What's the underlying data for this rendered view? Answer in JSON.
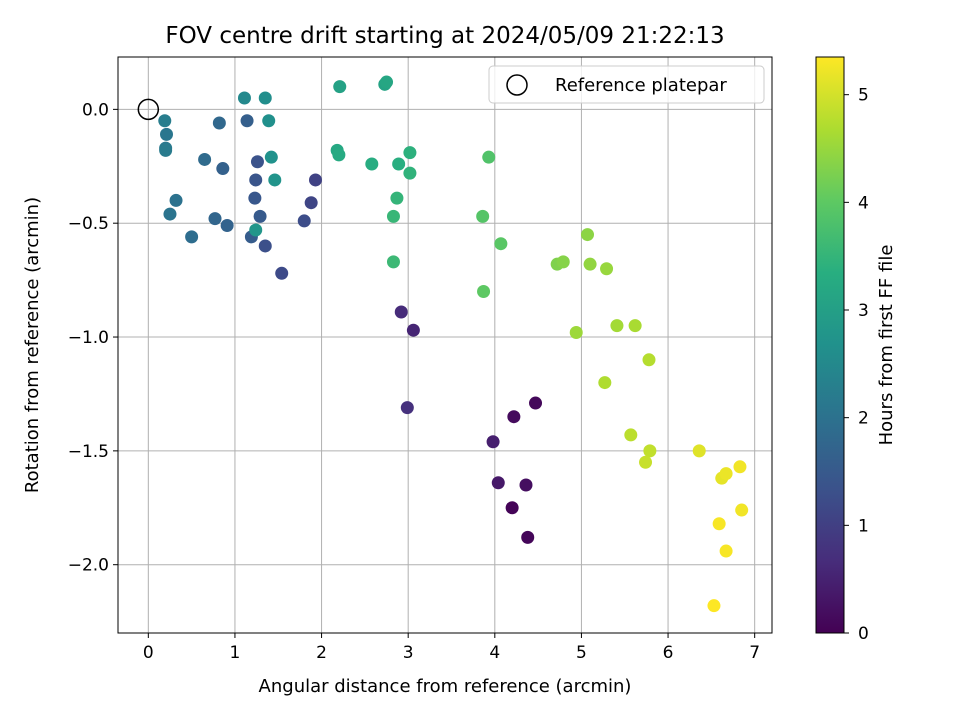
{
  "chart_data": {
    "type": "scatter",
    "title": "FOV centre drift starting at 2024/05/09 21:22:13",
    "xlabel": "Angular distance from reference (arcmin)",
    "ylabel": "Rotation from reference (arcmin)",
    "xlim": [
      -0.35,
      7.2
    ],
    "ylim": [
      -2.3,
      0.23
    ],
    "xticks": [
      0,
      1,
      2,
      3,
      4,
      5,
      6,
      7
    ],
    "xtick_labels": [
      "0",
      "1",
      "2",
      "3",
      "4",
      "5",
      "6",
      "7"
    ],
    "yticks": [
      0.0,
      -0.5,
      -1.0,
      -1.5,
      -2.0
    ],
    "ytick_labels": [
      "0.0",
      "−0.5",
      "−1.0",
      "−1.5",
      "−2.0"
    ],
    "grid": true,
    "legend": {
      "label": "Reference platepar",
      "placement": "top-right"
    },
    "reference_point": {
      "x": 0.0,
      "y": 0.0
    },
    "colorbar": {
      "label": "Hours from first FF file",
      "colormap": "viridis",
      "range": [
        0,
        5.35
      ],
      "ticks": [
        0,
        1,
        2,
        3,
        4,
        5
      ],
      "tick_labels": [
        "0",
        "1",
        "2",
        "3",
        "4",
        "5"
      ]
    },
    "points": [
      {
        "x": 4.2,
        "y": -1.75,
        "c": 0.05
      },
      {
        "x": 4.38,
        "y": -1.88,
        "c": 0.08
      },
      {
        "x": 4.47,
        "y": -1.29,
        "c": 0.1
      },
      {
        "x": 4.22,
        "y": -1.35,
        "c": 0.15
      },
      {
        "x": 4.36,
        "y": -1.65,
        "c": 0.2
      },
      {
        "x": 4.04,
        "y": -1.64,
        "c": 0.35
      },
      {
        "x": 3.98,
        "y": -1.46,
        "c": 0.45
      },
      {
        "x": 3.06,
        "y": -0.97,
        "c": 0.55
      },
      {
        "x": 2.92,
        "y": -0.89,
        "c": 0.65
      },
      {
        "x": 2.99,
        "y": -1.31,
        "c": 0.75
      },
      {
        "x": 1.93,
        "y": -0.31,
        "c": 1.05
      },
      {
        "x": 1.88,
        "y": -0.41,
        "c": 1.1
      },
      {
        "x": 1.54,
        "y": -0.72,
        "c": 1.2
      },
      {
        "x": 1.8,
        "y": -0.49,
        "c": 1.25
      },
      {
        "x": 1.35,
        "y": -0.6,
        "c": 1.3
      },
      {
        "x": 1.26,
        "y": -0.23,
        "c": 1.35
      },
      {
        "x": 1.24,
        "y": -0.31,
        "c": 1.4
      },
      {
        "x": 1.23,
        "y": -0.39,
        "c": 1.45
      },
      {
        "x": 1.29,
        "y": -0.47,
        "c": 1.5
      },
      {
        "x": 1.19,
        "y": -0.56,
        "c": 1.55
      },
      {
        "x": 1.14,
        "y": -0.05,
        "c": 1.6
      },
      {
        "x": 0.86,
        "y": -0.26,
        "c": 1.65
      },
      {
        "x": 0.91,
        "y": -0.51,
        "c": 1.7
      },
      {
        "x": 0.77,
        "y": -0.48,
        "c": 1.75
      },
      {
        "x": 0.82,
        "y": -0.06,
        "c": 1.8
      },
      {
        "x": 0.65,
        "y": -0.22,
        "c": 1.85
      },
      {
        "x": 0.5,
        "y": -0.56,
        "c": 1.9
      },
      {
        "x": 0.32,
        "y": -0.4,
        "c": 2.0
      },
      {
        "x": 0.25,
        "y": -0.46,
        "c": 2.05
      },
      {
        "x": 0.21,
        "y": -0.11,
        "c": 2.1
      },
      {
        "x": 0.2,
        "y": -0.17,
        "c": 2.15
      },
      {
        "x": 0.2,
        "y": -0.18,
        "c": 2.2
      },
      {
        "x": 0.19,
        "y": -0.05,
        "c": 2.25
      },
      {
        "x": 1.11,
        "y": 0.05,
        "c": 2.5
      },
      {
        "x": 1.35,
        "y": 0.05,
        "c": 2.6
      },
      {
        "x": 1.39,
        "y": -0.05,
        "c": 2.65
      },
      {
        "x": 1.42,
        "y": -0.21,
        "c": 2.7
      },
      {
        "x": 1.46,
        "y": -0.31,
        "c": 2.75
      },
      {
        "x": 1.24,
        "y": -0.53,
        "c": 2.8
      },
      {
        "x": 2.21,
        "y": 0.1,
        "c": 3.05
      },
      {
        "x": 2.73,
        "y": 0.11,
        "c": 3.1
      },
      {
        "x": 2.75,
        "y": 0.12,
        "c": 3.15
      },
      {
        "x": 2.18,
        "y": -0.18,
        "c": 3.2
      },
      {
        "x": 2.2,
        "y": -0.2,
        "c": 3.25
      },
      {
        "x": 2.58,
        "y": -0.24,
        "c": 3.3
      },
      {
        "x": 2.89,
        "y": -0.24,
        "c": 3.35
      },
      {
        "x": 3.02,
        "y": -0.19,
        "c": 3.4
      },
      {
        "x": 3.02,
        "y": -0.28,
        "c": 3.45
      },
      {
        "x": 2.87,
        "y": -0.39,
        "c": 3.5
      },
      {
        "x": 2.83,
        "y": -0.47,
        "c": 3.55
      },
      {
        "x": 2.83,
        "y": -0.67,
        "c": 3.6
      },
      {
        "x": 3.93,
        "y": -0.21,
        "c": 3.85
      },
      {
        "x": 3.86,
        "y": -0.47,
        "c": 3.9
      },
      {
        "x": 4.07,
        "y": -0.59,
        "c": 3.95
      },
      {
        "x": 3.87,
        "y": -0.8,
        "c": 4.0
      },
      {
        "x": 4.72,
        "y": -0.68,
        "c": 4.3
      },
      {
        "x": 4.79,
        "y": -0.67,
        "c": 4.35
      },
      {
        "x": 5.07,
        "y": -0.55,
        "c": 4.4
      },
      {
        "x": 5.1,
        "y": -0.68,
        "c": 4.45
      },
      {
        "x": 5.29,
        "y": -0.7,
        "c": 4.5
      },
      {
        "x": 4.94,
        "y": -0.98,
        "c": 4.55
      },
      {
        "x": 5.41,
        "y": -0.95,
        "c": 4.6
      },
      {
        "x": 5.62,
        "y": -0.95,
        "c": 4.65
      },
      {
        "x": 5.27,
        "y": -1.2,
        "c": 4.7
      },
      {
        "x": 5.78,
        "y": -1.1,
        "c": 4.75
      },
      {
        "x": 5.57,
        "y": -1.43,
        "c": 4.8
      },
      {
        "x": 5.79,
        "y": -1.5,
        "c": 4.85
      },
      {
        "x": 5.74,
        "y": -1.55,
        "c": 4.9
      },
      {
        "x": 6.36,
        "y": -1.5,
        "c": 5.1
      },
      {
        "x": 6.62,
        "y": -1.62,
        "c": 5.15
      },
      {
        "x": 6.67,
        "y": -1.6,
        "c": 5.2
      },
      {
        "x": 6.83,
        "y": -1.57,
        "c": 5.25
      },
      {
        "x": 6.85,
        "y": -1.76,
        "c": 5.25
      },
      {
        "x": 6.59,
        "y": -1.82,
        "c": 5.3
      },
      {
        "x": 6.67,
        "y": -1.94,
        "c": 5.3
      },
      {
        "x": 6.53,
        "y": -2.18,
        "c": 5.35
      }
    ]
  }
}
